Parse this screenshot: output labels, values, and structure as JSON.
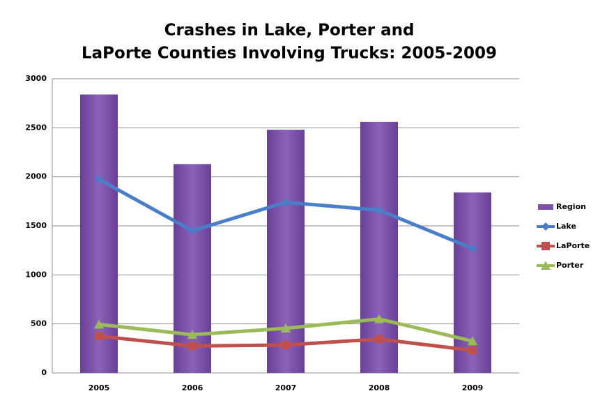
{
  "chart_data": {
    "type": "combo",
    "title": [
      "Crashes in Lake, Porter and",
      "LaPorte Counties Involving Trucks: 2005-2009"
    ],
    "categories": [
      "2005",
      "2006",
      "2007",
      "2008",
      "2009"
    ],
    "series": [
      {
        "name": "Region",
        "type": "bar",
        "color": "#7d53a8",
        "values": [
          2840,
          2130,
          2480,
          2560,
          1840
        ]
      },
      {
        "name": "Lake",
        "type": "line",
        "marker": "diamond",
        "color": "#4a7ec8",
        "values": [
          1975,
          1450,
          1740,
          1660,
          1270
        ]
      },
      {
        "name": "LaPorte",
        "type": "line",
        "marker": "square",
        "color": "#c0504d",
        "values": [
          375,
          275,
          285,
          345,
          230
        ]
      },
      {
        "name": "Porter",
        "type": "line",
        "marker": "triangle",
        "color": "#9bbb59",
        "values": [
          495,
          390,
          455,
          550,
          325
        ]
      }
    ],
    "ylim": [
      0,
      3000
    ],
    "yticks": [
      0,
      500,
      1000,
      1500,
      2000,
      2500,
      3000
    ],
    "grid": true,
    "legend": "right"
  }
}
